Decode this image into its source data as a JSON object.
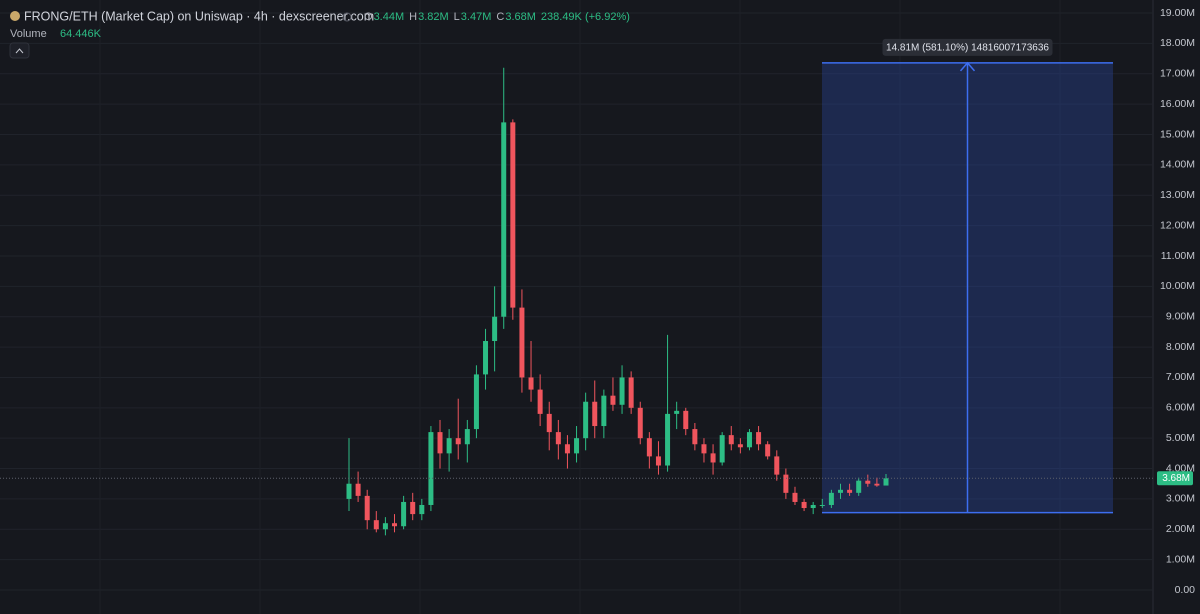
{
  "chart_data": {
    "type": "candlestick",
    "title": "FRONG/ETH (Market Cap) on Uniswap · 4h · dexscreener.com",
    "ohlc_legend": [
      {
        "key": "O",
        "value": "3.44M"
      },
      {
        "key": "H",
        "value": "3.82M"
      },
      {
        "key": "L",
        "value": "3.47M"
      },
      {
        "key": "C",
        "value": "3.68M"
      }
    ],
    "change": "238.49K (+6.92%)",
    "volume_label": "Volume",
    "volume_value": "64.446K",
    "up_color": "#2dbd85",
    "down_color": "#f0555d",
    "open": [
      3.0,
      3.5,
      3.1,
      2.3,
      2.0,
      2.2,
      2.1,
      2.9,
      2.5,
      2.8,
      5.2,
      4.5,
      5.0,
      4.8,
      5.3,
      7.1,
      8.2,
      9.0,
      15.4,
      9.3,
      7.0,
      6.6,
      5.8,
      5.2,
      4.8,
      4.5,
      5.0,
      6.2,
      5.4,
      6.4,
      6.1,
      7.0,
      6.0,
      5.0,
      4.4,
      4.1,
      5.8,
      5.9,
      5.3,
      4.8,
      4.5,
      4.2,
      5.1,
      4.8,
      4.7,
      5.2,
      4.8,
      4.4,
      3.8,
      3.2,
      2.9,
      2.7,
      2.8,
      2.8,
      3.2,
      3.3,
      3.2,
      3.6,
      3.5,
      3.44
    ],
    "high": [
      5.0,
      3.9,
      3.3,
      2.6,
      2.4,
      2.5,
      3.1,
      3.2,
      3.0,
      5.4,
      5.6,
      5.3,
      6.3,
      5.6,
      7.4,
      8.6,
      10.0,
      17.2,
      15.5,
      9.9,
      8.2,
      7.1,
      6.2,
      5.6,
      5.1,
      5.4,
      6.5,
      6.9,
      6.6,
      7.0,
      7.4,
      7.2,
      6.2,
      5.2,
      4.9,
      8.4,
      6.2,
      6.0,
      5.5,
      5.0,
      4.8,
      5.2,
      5.4,
      5.0,
      5.3,
      5.4,
      4.9,
      4.6,
      4.0,
      3.4,
      3.0,
      2.9,
      3.0,
      3.3,
      3.5,
      3.5,
      3.7,
      3.8,
      3.7,
      3.82
    ],
    "low": [
      2.6,
      2.9,
      2.0,
      1.9,
      1.8,
      1.9,
      2.0,
      2.3,
      2.3,
      2.6,
      4.0,
      3.9,
      4.3,
      4.2,
      5.0,
      6.6,
      7.2,
      8.6,
      8.9,
      6.5,
      6.2,
      5.4,
      4.6,
      4.3,
      4.0,
      4.2,
      4.6,
      5.0,
      5.0,
      5.9,
      5.8,
      5.8,
      4.8,
      4.0,
      3.8,
      3.9,
      5.3,
      5.1,
      4.6,
      4.2,
      3.8,
      4.1,
      4.6,
      4.5,
      4.6,
      4.6,
      4.3,
      3.6,
      3.0,
      2.8,
      2.6,
      2.5,
      2.7,
      2.7,
      3.0,
      3.1,
      3.1,
      3.4,
      3.4,
      3.47
    ],
    "close": [
      3.5,
      3.1,
      2.3,
      2.0,
      2.2,
      2.1,
      2.9,
      2.5,
      2.8,
      5.2,
      4.5,
      5.0,
      4.8,
      5.3,
      7.1,
      8.2,
      9.0,
      15.4,
      9.3,
      7.0,
      6.6,
      5.8,
      5.2,
      4.8,
      4.5,
      5.0,
      6.2,
      5.4,
      6.4,
      6.1,
      7.0,
      6.0,
      5.0,
      4.4,
      4.1,
      5.8,
      5.9,
      5.3,
      4.8,
      4.5,
      4.2,
      5.1,
      4.8,
      4.7,
      5.2,
      4.8,
      4.4,
      3.8,
      3.2,
      2.9,
      2.7,
      2.8,
      2.8,
      3.2,
      3.3,
      3.2,
      3.6,
      3.5,
      3.44,
      3.68
    ],
    "last_price": {
      "value": 3.68,
      "label": "3.68M"
    },
    "measure": {
      "from": 2.55,
      "to": 17.36,
      "label": "14.81M (581.10%) 14816007173636"
    },
    "ylim": [
      -0.79,
      19.43
    ],
    "yticks": [
      {
        "value": 0,
        "label": "0.00"
      },
      {
        "value": 1,
        "label": "1.00M"
      },
      {
        "value": 2,
        "label": "2.00M"
      },
      {
        "value": 3,
        "label": "3.00M"
      },
      {
        "value": 4,
        "label": "4.00M"
      },
      {
        "value": 5,
        "label": "5.00M"
      },
      {
        "value": 6,
        "label": "6.00M"
      },
      {
        "value": 7,
        "label": "7.00M"
      },
      {
        "value": 8,
        "label": "8.00M"
      },
      {
        "value": 9,
        "label": "9.00M"
      },
      {
        "value": 10,
        "label": "10.00M"
      },
      {
        "value": 11,
        "label": "11.00M"
      },
      {
        "value": 12,
        "label": "12.00M"
      },
      {
        "value": 13,
        "label": "13.00M"
      },
      {
        "value": 14,
        "label": "14.00M"
      },
      {
        "value": 15,
        "label": "15.00M"
      },
      {
        "value": 16,
        "label": "16.00M"
      },
      {
        "value": 17,
        "label": "17.00M"
      },
      {
        "value": 18,
        "label": "18.00M"
      },
      {
        "value": 19,
        "label": "19.00M"
      }
    ],
    "grid": true
  }
}
